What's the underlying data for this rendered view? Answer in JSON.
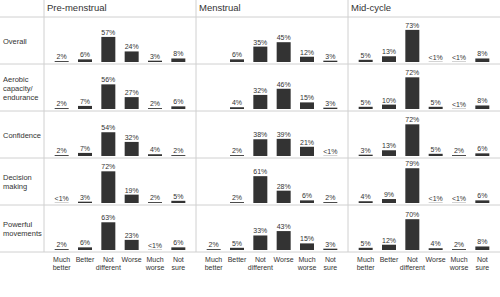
{
  "chart_data": {
    "type": "bar",
    "panel_titles": [
      "Pre-menstrual",
      "Menstrual",
      "Mid-cycle"
    ],
    "categories": [
      "Much better",
      "Better",
      "Not different",
      "Worse",
      "Much worse",
      "Not sure"
    ],
    "ylim": [
      0,
      100
    ],
    "color": "#333333",
    "data_labels": true,
    "tick_labels": "x",
    "rows": [
      {
        "name": "Overall",
        "panels": [
          {
            "values": [
              2,
              6,
              57,
              24,
              3,
              8
            ],
            "value_labels": [
              "2%",
              "6%",
              "57%",
              "24%",
              "3%",
              "8%"
            ]
          },
          {
            "values": [
              null,
              6,
              35,
              45,
              12,
              3
            ],
            "value_labels": [
              null,
              "6%",
              "35%",
              "45%",
              "12%",
              "3%"
            ]
          },
          {
            "values": [
              5,
              13,
              73,
              0.5,
              0.5,
              8
            ],
            "value_labels": [
              "5%",
              "13%",
              "73%",
              "<1%",
              "<1%",
              "8%"
            ]
          }
        ]
      },
      {
        "name": "Aerobic capacity/ endurance",
        "panels": [
          {
            "values": [
              2,
              7,
              56,
              27,
              2,
              6
            ],
            "value_labels": [
              "2%",
              "7%",
              "56%",
              "27%",
              "2%",
              "6%"
            ]
          },
          {
            "values": [
              null,
              4,
              32,
              46,
              15,
              3
            ],
            "value_labels": [
              null,
              "4%",
              "32%",
              "46%",
              "15%",
              "3%"
            ]
          },
          {
            "values": [
              5,
              10,
              72,
              5,
              0.5,
              8
            ],
            "value_labels": [
              "5%",
              "10%",
              "72%",
              "5%",
              "<1%",
              "8%"
            ]
          }
        ]
      },
      {
        "name": "Confidence",
        "panels": [
          {
            "values": [
              2,
              7,
              54,
              32,
              4,
              2
            ],
            "value_labels": [
              "2%",
              "7%",
              "54%",
              "32%",
              "4%",
              "2%"
            ]
          },
          {
            "values": [
              null,
              2,
              38,
              39,
              21,
              0.5
            ],
            "value_labels": [
              null,
              "2%",
              "38%",
              "39%",
              "21%",
              "<1%"
            ]
          },
          {
            "values": [
              3,
              13,
              72,
              5,
              2,
              6
            ],
            "value_labels": [
              "3%",
              "13%",
              "72%",
              "5%",
              "2%",
              "6%"
            ]
          }
        ]
      },
      {
        "name": "Decision making",
        "panels": [
          {
            "values": [
              0.5,
              3,
              72,
              19,
              2,
              5
            ],
            "value_labels": [
              "<1%",
              "3%",
              "72%",
              "19%",
              "2%",
              "5%"
            ]
          },
          {
            "values": [
              null,
              2,
              61,
              28,
              6,
              2
            ],
            "value_labels": [
              null,
              "2%",
              "61%",
              "28%",
              "6%",
              "2%"
            ]
          },
          {
            "values": [
              4,
              9,
              79,
              0.5,
              0.5,
              6
            ],
            "value_labels": [
              "4%",
              "9%",
              "79%",
              "<1%",
              "<1%",
              "6%"
            ]
          }
        ]
      },
      {
        "name": "Powerful movements",
        "panels": [
          {
            "values": [
              2,
              6,
              63,
              23,
              0.5,
              6
            ],
            "value_labels": [
              "2%",
              "6%",
              "63%",
              "23%",
              "<1%",
              "6%"
            ]
          },
          {
            "values": [
              2,
              5,
              33,
              43,
              15,
              3
            ],
            "value_labels": [
              "2%",
              "5%",
              "33%",
              "43%",
              "15%",
              "3%"
            ]
          },
          {
            "values": [
              5,
              12,
              70,
              4,
              2,
              8
            ],
            "value_labels": [
              "5%",
              "12%",
              "70%",
              "4%",
              "2%",
              "8%"
            ]
          }
        ]
      }
    ]
  }
}
